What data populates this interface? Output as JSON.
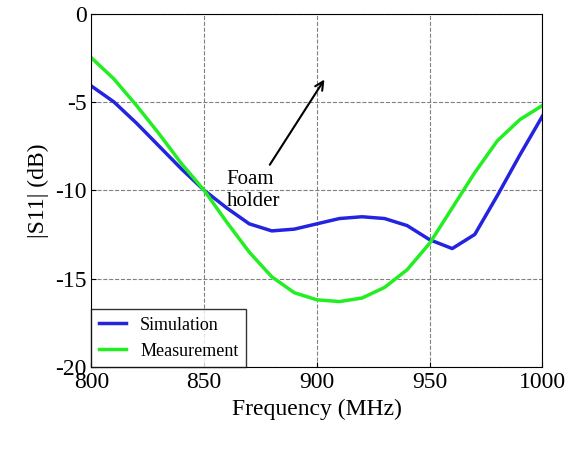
{
  "chart_data": {
    "type": "line",
    "x_label": "Frequency (MHz)",
    "y_label": "|S11| (dB)",
    "x": [
      800,
      810,
      820,
      830,
      840,
      850,
      860,
      870,
      880,
      890,
      900,
      910,
      920,
      930,
      940,
      950,
      960,
      970,
      980,
      990,
      1000
    ],
    "series": [
      {
        "name": "Simulation",
        "color": "#2424e0",
        "values": [
          -4.1,
          -5.0,
          -6.2,
          -7.5,
          -8.8,
          -10.0,
          -11.0,
          -11.9,
          -12.3,
          -12.2,
          -11.9,
          -11.6,
          -11.5,
          -11.6,
          -12.0,
          -12.8,
          -13.3,
          -12.5,
          -10.3,
          -8.0,
          -5.8
        ]
      },
      {
        "name": "Measurement",
        "color": "#22ee22",
        "values": [
          -2.5,
          -3.7,
          -5.2,
          -6.8,
          -8.5,
          -10.0,
          -11.8,
          -13.5,
          -14.9,
          -15.8,
          -16.2,
          -16.3,
          -16.1,
          -15.5,
          -14.5,
          -13.0,
          -11.0,
          -9.0,
          -7.2,
          -6.0,
          -5.2
        ]
      }
    ],
    "xlim": [
      800,
      1000
    ],
    "xticks": [
      800,
      850,
      900,
      950,
      1000
    ],
    "ylim": [
      -20,
      0
    ],
    "yticks": [
      -20,
      -15,
      -10,
      -5,
      0
    ],
    "grid": true,
    "legend": "lower left",
    "annotations": [
      {
        "text": "Foam\nholder"
      }
    ]
  }
}
